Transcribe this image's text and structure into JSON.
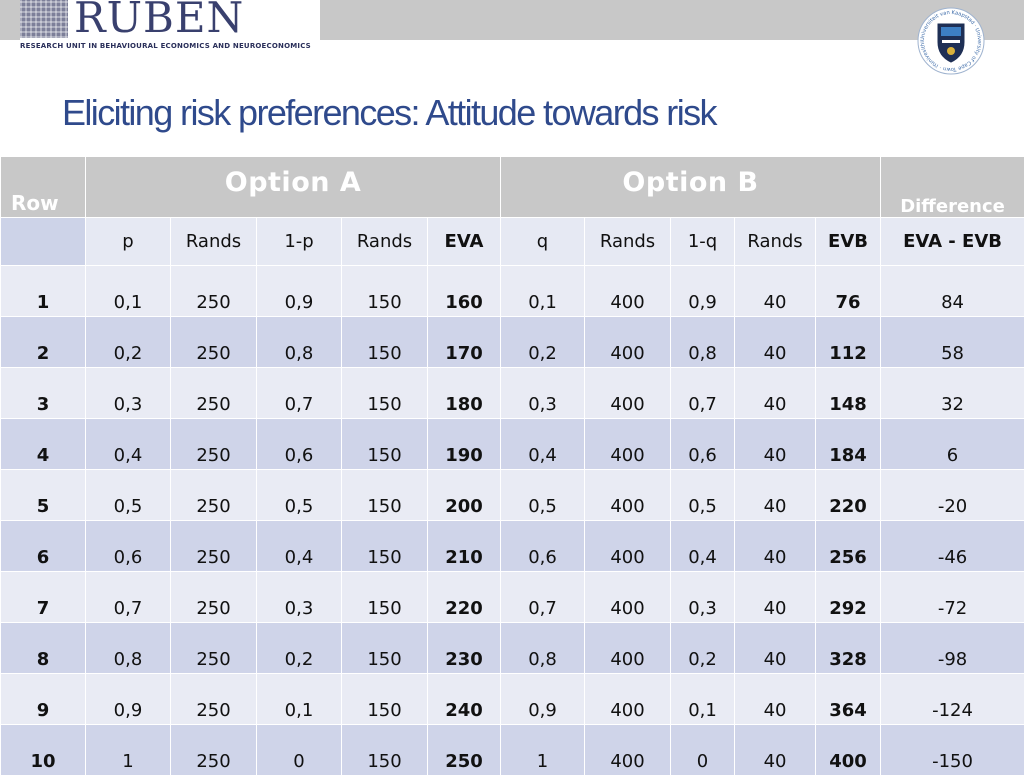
{
  "logo": {
    "wordmark": "RUBEN",
    "subtitle": "RESEARCH UNIT IN BEHAVIOURAL ECONOMICS AND NEUROECONOMICS"
  },
  "seal": {
    "icon": "university-crest-icon",
    "text": "Universiteit van Kaapstad · University of Cape Town · iYunivesithi yaseKapa"
  },
  "title": "Eliciting risk preferences: Attitude towards risk",
  "table": {
    "group_headers": {
      "row": "Row",
      "option_a": "Option A",
      "option_b": "Option B",
      "difference": "Difference"
    },
    "columns": [
      "",
      "p",
      "Rands",
      "1-p",
      "Rands",
      "EVA",
      "q",
      "Rands",
      "1-q",
      "Rands",
      "EVB",
      "EVA - EVB"
    ],
    "rows": [
      [
        "1",
        "0,1",
        "250",
        "0,9",
        "150",
        "160",
        "0,1",
        "400",
        "0,9",
        "40",
        "76",
        "84"
      ],
      [
        "2",
        "0,2",
        "250",
        "0,8",
        "150",
        "170",
        "0,2",
        "400",
        "0,8",
        "40",
        "112",
        "58"
      ],
      [
        "3",
        "0,3",
        "250",
        "0,7",
        "150",
        "180",
        "0,3",
        "400",
        "0,7",
        "40",
        "148",
        "32"
      ],
      [
        "4",
        "0,4",
        "250",
        "0,6",
        "150",
        "190",
        "0,4",
        "400",
        "0,6",
        "40",
        "184",
        "6"
      ],
      [
        "5",
        "0,5",
        "250",
        "0,5",
        "150",
        "200",
        "0,5",
        "400",
        "0,5",
        "40",
        "220",
        "-20"
      ],
      [
        "6",
        "0,6",
        "250",
        "0,4",
        "150",
        "210",
        "0,6",
        "400",
        "0,4",
        "40",
        "256",
        "-46"
      ],
      [
        "7",
        "0,7",
        "250",
        "0,3",
        "150",
        "220",
        "0,7",
        "400",
        "0,3",
        "40",
        "292",
        "-72"
      ],
      [
        "8",
        "0,8",
        "250",
        "0,2",
        "150",
        "230",
        "0,8",
        "400",
        "0,2",
        "40",
        "328",
        "-98"
      ],
      [
        "9",
        "0,9",
        "250",
        "0,1",
        "150",
        "240",
        "0,9",
        "400",
        "0,1",
        "40",
        "364",
        "-124"
      ],
      [
        "10",
        "1",
        "250",
        "0",
        "150",
        "250",
        "1",
        "400",
        "0",
        "40",
        "400",
        "-150"
      ]
    ]
  },
  "colors": {
    "title": "#2f4a8c",
    "header_band": "#c8c8c8",
    "row_light": "#e9ebf4",
    "row_dark": "#cfd4e9",
    "logo": "#39406e"
  }
}
